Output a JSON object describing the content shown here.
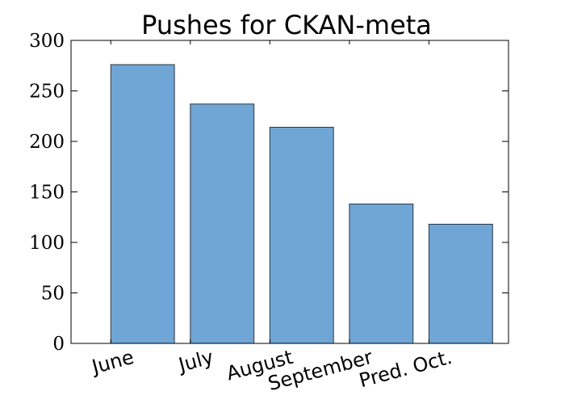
{
  "chart_data": {
    "type": "bar",
    "title": "Pushes for CKAN-meta",
    "xlabel": "",
    "ylabel": "",
    "categories": [
      "June",
      "July",
      "August",
      "September",
      "Pred. Oct."
    ],
    "values": [
      276,
      237,
      214,
      138,
      118
    ],
    "ylim": [
      0,
      300
    ],
    "yticks": [
      0,
      50,
      100,
      150,
      200,
      250,
      300
    ],
    "grid": false,
    "legend": "none",
    "bar_color": "#6fa6d6",
    "bar_edge_color": "#2a3644"
  }
}
